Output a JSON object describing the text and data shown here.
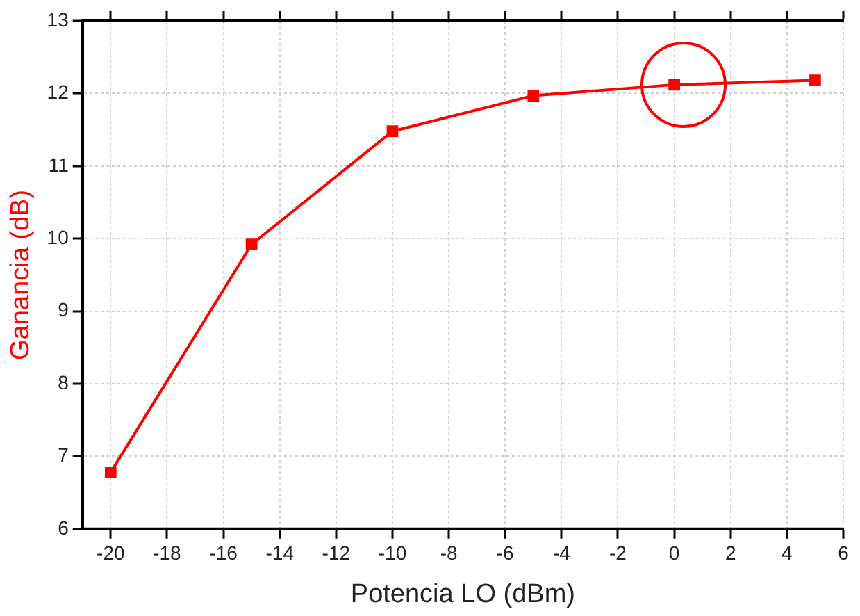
{
  "chart_data": {
    "type": "line",
    "xlabel": "Potencia LO (dBm)",
    "ylabel": "Ganancia (dB)",
    "x": [
      -20,
      -15,
      -10,
      -5,
      0,
      5
    ],
    "series": [
      {
        "color": "#ff0000",
        "values": [
          6.78,
          9.92,
          11.48,
          11.97,
          12.12,
          12.18
        ]
      }
    ],
    "xlim": [
      -21,
      6
    ],
    "xticks": [
      -20,
      -18,
      -16,
      -14,
      -12,
      -10,
      -8,
      -6,
      -4,
      -2,
      0,
      2,
      4,
      6
    ],
    "ylim": [
      6,
      13
    ],
    "yticks": [
      6,
      7,
      8,
      9,
      10,
      11,
      12,
      13
    ],
    "grid": true,
    "legend": false,
    "marker": "square",
    "line_style": "solid"
  }
}
